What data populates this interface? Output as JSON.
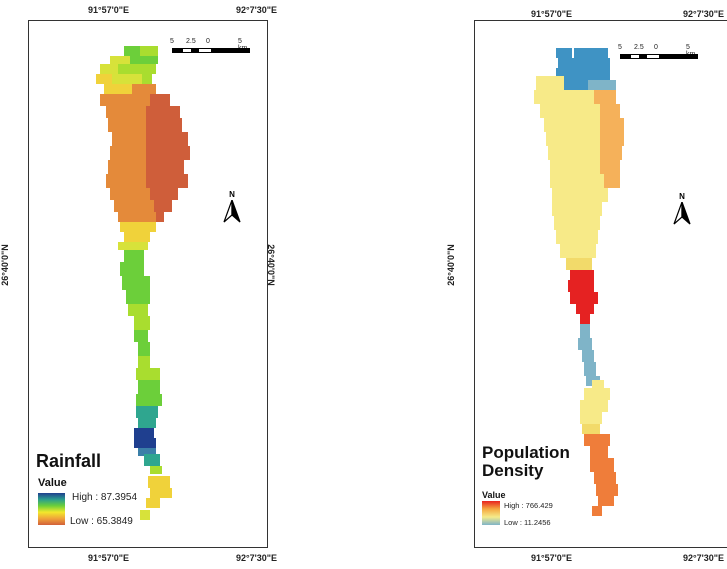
{
  "coordinates": {
    "lon_west": "91°57'0\"E",
    "lon_east": "92°7'30\"E",
    "lat_mid": "26°40'0\"N"
  },
  "north_arrow": {
    "letter": "N",
    "icon": "north-arrow-icon"
  },
  "scale_bar": {
    "labels": [
      "5",
      "2.5",
      "0",
      "5 km"
    ]
  },
  "maps": [
    {
      "id": "rainfall",
      "title": "Rainfall",
      "legend_heading": "Value",
      "legend_high": "High : 87.3954",
      "legend_low": "Low : 65.3849",
      "ramp_colors": [
        "#1f3f8f",
        "#2a9d8f",
        "#6ccf3a",
        "#f2e82c",
        "#f0a33a",
        "#d2603a"
      ]
    },
    {
      "id": "population-density",
      "title": "Population Density",
      "legend_heading": "Value",
      "legend_high": "High : 766.429",
      "legend_low": "Low : 11.2456",
      "ramp_colors": [
        "#e8231f",
        "#f5a840",
        "#f5eb8a",
        "#7fb4c8"
      ]
    }
  ]
}
